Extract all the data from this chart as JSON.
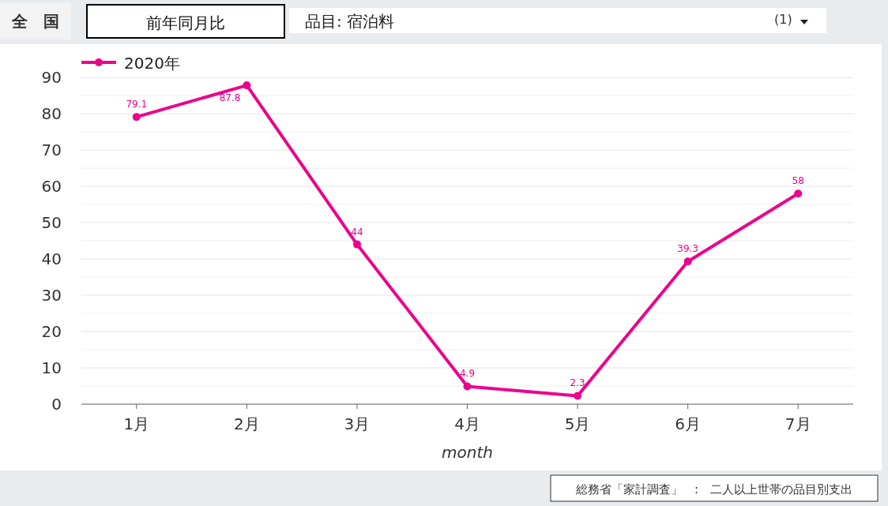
{
  "chart_data": {
    "type": "line",
    "title": "前年同月比",
    "subtitle": "品目: 宿泊料",
    "xlabel": "month",
    "categories": [
      "1月",
      "2月",
      "3月",
      "4月",
      "5月",
      "6月",
      "7月"
    ],
    "series": [
      {
        "name": "2020年",
        "color": "#ec008c",
        "values": [
          79.1,
          87.8,
          44,
          4.9,
          2.3,
          39.3,
          58
        ]
      }
    ],
    "ylim": [
      0,
      90
    ],
    "yticks": [
      0,
      {
        "value": 5,
        "label": null
      },
      10,
      {
        "value": 15,
        "label": null
      },
      20,
      {
        "value": 25,
        "label": null
      },
      30,
      {
        "value": 35,
        "label": null
      },
      40,
      {
        "value": 45,
        "label": null
      },
      50,
      {
        "value": 55,
        "label": null
      },
      60,
      {
        "value": 65,
        "label": null
      },
      70,
      {
        "value": 75,
        "label": null
      },
      80,
      {
        "value": 85,
        "label": null
      },
      90
    ],
    "grid": "y",
    "legend": "top left",
    "marker": "circle",
    "line_style": "solid",
    "data_labels": true,
    "annotations": [
      "全　国",
      "(1)",
      "総務省「家計調査」　:　二人以上世帯の品目別支出"
    ]
  }
}
